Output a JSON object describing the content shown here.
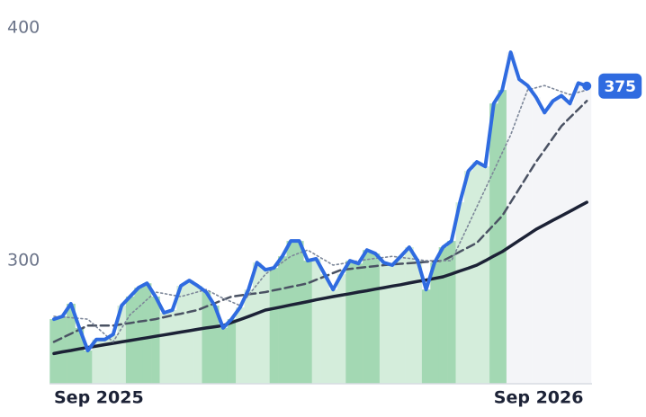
{
  "chart_data": {
    "type": "line",
    "categories": [
      "Sep 2025",
      null,
      null,
      null,
      null,
      null,
      null,
      null,
      null,
      null,
      null,
      null,
      null,
      null,
      null,
      null,
      null,
      null,
      null,
      null,
      null,
      null,
      null,
      null,
      null,
      null,
      null,
      null,
      null,
      null,
      null,
      null,
      null,
      null,
      null,
      null,
      null,
      null,
      null,
      null,
      null,
      null,
      null,
      null,
      null,
      null,
      null,
      null,
      null,
      null,
      null,
      null,
      "Sep 2026",
      null,
      null,
      null,
      null,
      null,
      null,
      null,
      null,
      null,
      null,
      null
    ],
    "ylim": [
      247,
      412
    ],
    "yticks": [
      300,
      400
    ],
    "grid": false,
    "shade_colors": [
      "#a3d8b3",
      "#d4eddb"
    ],
    "future_color": "#f4f5f8",
    "series": [
      {
        "color": "#2f6be0",
        "style": "solid",
        "width": 4,
        "values": [
          274.8,
          276,
          281.4,
          271,
          261.3,
          266,
          266,
          268.2,
          280.6,
          284.5,
          288.3,
          290.2,
          284.5,
          277.5,
          278.7,
          289.1,
          291.4,
          289.1,
          286.4,
          280.6,
          271,
          274.8,
          279.8,
          287.5,
          299.1,
          296,
          296.8,
          301.8,
          308.4,
          308.4,
          299.9,
          300.7,
          294.1,
          287.5,
          294.1,
          299.9,
          298.7,
          304.5,
          303,
          299.1,
          298,
          301.8,
          305.7,
          299.9,
          287.5,
          299.1,
          305.7,
          308.4,
          325,
          338.5,
          342.4,
          340.4,
          367.5,
          373.3,
          389.5,
          377.9,
          375.2,
          370.2,
          363.6,
          368.6,
          370.9,
          367.5,
          376.3,
          375
        ],
        "value_labels": [
          null,
          null,
          null,
          null,
          null,
          null,
          null,
          null,
          null,
          null,
          null,
          null,
          null,
          null,
          null,
          null,
          null,
          null,
          null,
          null,
          null,
          null,
          null,
          null,
          null,
          null,
          null,
          null,
          null,
          null,
          null,
          null,
          null,
          null,
          null,
          null,
          null,
          null,
          null,
          null,
          null,
          null,
          null,
          null,
          null,
          null,
          null,
          null,
          null,
          null,
          null,
          null,
          null,
          null,
          null,
          null,
          null,
          null,
          null,
          null,
          null,
          null,
          null,
          "375"
        ]
      },
      {
        "color": "#7d8799",
        "style": "dotted",
        "width": 1.6,
        "values": [
          276,
          275.7,
          275.4,
          275.1,
          274.8,
          271.5,
          268.3,
          265,
          270.9,
          276.7,
          279.9,
          283.2,
          286.4,
          285.8,
          285.1,
          284.5,
          285.5,
          286.5,
          287.5,
          285.6,
          283.7,
          282.2,
          280.6,
          285.1,
          289.6,
          294.1,
          296.7,
          299.2,
          301.8,
          303.2,
          304.5,
          302.3,
          300.2,
          298,
          298.6,
          299.3,
          299.9,
          300.4,
          300.9,
          301.3,
          301.8,
          301.3,
          300.9,
          300.4,
          299.9,
          299.9,
          299.9,
          299.9,
          307.6,
          315.3,
          323.1,
          330.8,
          338.5,
          346.3,
          354,
          363.7,
          373.3,
          374.3,
          375.2,
          373.9,
          372.6,
          371.3,
          372.3,
          373.3
        ]
      },
      {
        "color": "#4a5263",
        "style": "dashed",
        "width": 2.5,
        "values": [
          265,
          266.8,
          268.5,
          270.3,
          272,
          272,
          272,
          272,
          272.6,
          273.1,
          273.7,
          274.2,
          274.8,
          275.6,
          276.4,
          277.1,
          277.9,
          278.7,
          280.2,
          281.6,
          283.1,
          284.5,
          285,
          285.5,
          285.9,
          286.4,
          287.2,
          287.9,
          288.7,
          289.4,
          290.2,
          291.7,
          293.1,
          294.6,
          296,
          296.4,
          296.8,
          297.2,
          297.6,
          298,
          298.3,
          298.6,
          298.8,
          299.1,
          299.4,
          299.7,
          299.9,
          301.8,
          303.8,
          305.7,
          307.6,
          311.5,
          315.3,
          319.2,
          325,
          330.8,
          336.6,
          342.4,
          347.5,
          352.7,
          357.8,
          361.4,
          365,
          368.6
        ]
      },
      {
        "color": "#1c2236",
        "style": "solid",
        "width": 3.5,
        "values": [
          260,
          260.7,
          261.3,
          262,
          262.6,
          263.2,
          263.8,
          264.4,
          265,
          265.6,
          266.2,
          266.8,
          267.4,
          268,
          268.6,
          269.2,
          269.8,
          270.4,
          271,
          271.5,
          272,
          273.3,
          274.6,
          275.9,
          277.3,
          278.7,
          279.4,
          280.1,
          280.9,
          281.6,
          282.3,
          283.1,
          283.8,
          284.5,
          285.1,
          285.7,
          286.4,
          287,
          287.7,
          288.3,
          289,
          289.6,
          290.3,
          291,
          291.6,
          292.3,
          293,
          294.2,
          295.5,
          296.7,
          298,
          299.9,
          301.9,
          303.8,
          306.2,
          308.6,
          311,
          313.4,
          315.3,
          317.3,
          319.2,
          321.1,
          323.1,
          325
        ]
      }
    ]
  }
}
